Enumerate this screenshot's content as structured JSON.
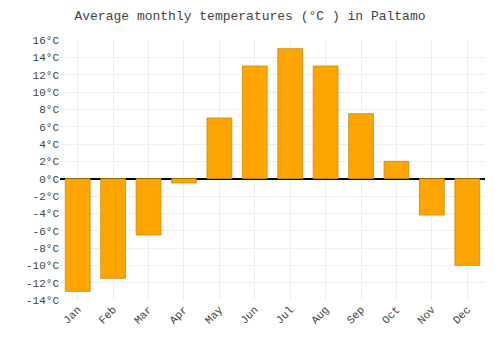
{
  "chart_data": {
    "type": "bar",
    "title": "Average monthly temperatures (°C ) in Paltamo",
    "categories": [
      "Jan",
      "Feb",
      "Mar",
      "Apr",
      "May",
      "Jun",
      "Jul",
      "Aug",
      "Sep",
      "Oct",
      "Nov",
      "Dec"
    ],
    "values": [
      -13.0,
      -11.5,
      -6.5,
      -0.5,
      7.0,
      13.0,
      15.0,
      13.0,
      7.5,
      2.0,
      -4.2,
      -10.0
    ],
    "color": "#FFA500",
    "ylim": [
      -14,
      16
    ],
    "yticks": [
      {
        "value": -14,
        "label": "-14°C"
      },
      {
        "value": -12,
        "label": "-12°C"
      },
      {
        "value": -10,
        "label": "-10°C"
      },
      {
        "value": -8,
        "label": "-8°C"
      },
      {
        "value": -6,
        "label": "-6°C"
      },
      {
        "value": -4,
        "label": "-4°C"
      },
      {
        "value": -2,
        "label": "-2°C"
      },
      {
        "value": 0,
        "label": "0°C"
      },
      {
        "value": 2,
        "label": "2°C"
      },
      {
        "value": 4,
        "label": "4°C"
      },
      {
        "value": 6,
        "label": "6°C"
      },
      {
        "value": 8,
        "label": "8°C"
      },
      {
        "value": 10,
        "label": "10°C"
      },
      {
        "value": 12,
        "label": "12°C"
      },
      {
        "value": 14,
        "label": "14°C"
      },
      {
        "value": 16,
        "label": "16°C"
      }
    ],
    "grid": true
  }
}
